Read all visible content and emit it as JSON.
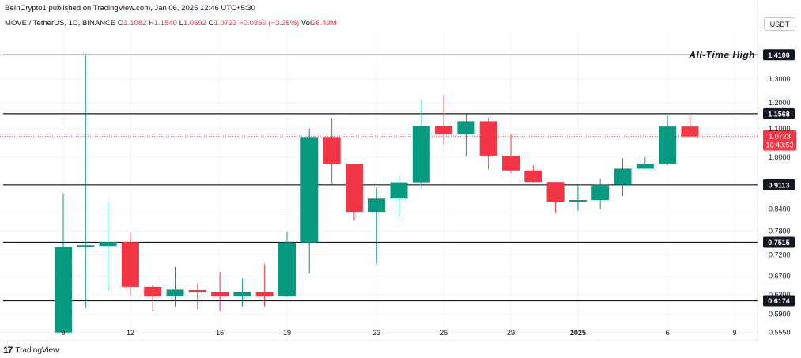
{
  "header": {
    "published": "BeInCrypto1 published on TradingView.com, Jan 06, 2025 12:46 UTC+5:30",
    "symbol": "MOVE / TetherUS, 1D, BINANCE",
    "o_label": "O",
    "o_value": "1.1082",
    "h_label": "H",
    "h_value": "1.1540",
    "l_label": "L",
    "l_value": "1.0692",
    "c_label": "C",
    "c_value": "1.0723",
    "change": "−0.0360 (−3.25%)",
    "vol_label": "Vol",
    "vol_value": "26.49M"
  },
  "currency": "USDT",
  "footer": {
    "brand": "TradingView",
    "logo": "17"
  },
  "colors": {
    "up": "#089981",
    "down": "#f23645",
    "level_line": "#131722",
    "grid": "#f0f3fa",
    "axis_text": "#131722"
  },
  "chart_data": {
    "type": "candlestick",
    "scale": "log",
    "ylim": [
      0.54,
      1.52
    ],
    "y_ticks": [
      "1.3000",
      "1.2000",
      "1.1000",
      "1.0000",
      "0.8400",
      "0.7800",
      "0.7200",
      "0.6700",
      "0.6300",
      "0.5900",
      "0.5550"
    ],
    "x_ticks": [
      {
        "day": 9,
        "label": "9"
      },
      {
        "day": 12,
        "label": "12"
      },
      {
        "day": 16,
        "label": "16"
      },
      {
        "day": 19,
        "label": "19"
      },
      {
        "day": 23,
        "label": "23"
      },
      {
        "day": 26,
        "label": "26"
      },
      {
        "day": 29,
        "label": "29"
      },
      {
        "day": 32,
        "label": "2025"
      },
      {
        "day": 36,
        "label": "6"
      },
      {
        "day": 39,
        "label": "9"
      }
    ],
    "candles": [
      {
        "day": 9,
        "o": 0.555,
        "h": 0.885,
        "l": 0.555,
        "c": 0.74
      },
      {
        "day": 10,
        "o": 0.741,
        "h": 1.41,
        "l": 0.602,
        "c": 0.744
      },
      {
        "day": 11,
        "o": 0.742,
        "h": 0.862,
        "l": 0.64,
        "c": 0.752
      },
      {
        "day": 12,
        "o": 0.752,
        "h": 0.775,
        "l": 0.628,
        "c": 0.647
      },
      {
        "day": 13,
        "o": 0.647,
        "h": 0.65,
        "l": 0.596,
        "c": 0.627
      },
      {
        "day": 14,
        "o": 0.627,
        "h": 0.692,
        "l": 0.605,
        "c": 0.641
      },
      {
        "day": 15,
        "o": 0.64,
        "h": 0.655,
        "l": 0.6,
        "c": 0.635
      },
      {
        "day": 16,
        "o": 0.636,
        "h": 0.68,
        "l": 0.596,
        "c": 0.627
      },
      {
        "day": 17,
        "o": 0.627,
        "h": 0.665,
        "l": 0.605,
        "c": 0.636
      },
      {
        "day": 18,
        "o": 0.636,
        "h": 0.698,
        "l": 0.605,
        "c": 0.627
      },
      {
        "day": 19,
        "o": 0.627,
        "h": 0.778,
        "l": 0.625,
        "c": 0.751
      },
      {
        "day": 20,
        "o": 0.751,
        "h": 1.1,
        "l": 0.677,
        "c": 1.07
      },
      {
        "day": 21,
        "o": 1.07,
        "h": 1.14,
        "l": 0.912,
        "c": 0.978
      },
      {
        "day": 22,
        "o": 0.978,
        "h": 0.978,
        "l": 0.808,
        "c": 0.832
      },
      {
        "day": 23,
        "o": 0.832,
        "h": 0.903,
        "l": 0.7,
        "c": 0.87
      },
      {
        "day": 24,
        "o": 0.87,
        "h": 0.937,
        "l": 0.82,
        "c": 0.919
      },
      {
        "day": 25,
        "o": 0.919,
        "h": 1.21,
        "l": 0.9,
        "c": 1.11
      },
      {
        "day": 26,
        "o": 1.11,
        "h": 1.232,
        "l": 1.042,
        "c": 1.08
      },
      {
        "day": 27,
        "o": 1.08,
        "h": 1.16,
        "l": 1.003,
        "c": 1.128
      },
      {
        "day": 28,
        "o": 1.128,
        "h": 1.14,
        "l": 0.96,
        "c": 1.005
      },
      {
        "day": 29,
        "o": 1.005,
        "h": 1.08,
        "l": 0.948,
        "c": 0.956
      },
      {
        "day": 30,
        "o": 0.956,
        "h": 0.973,
        "l": 0.918,
        "c": 0.92
      },
      {
        "day": 31,
        "o": 0.92,
        "h": 0.92,
        "l": 0.83,
        "c": 0.86
      },
      {
        "day": 32,
        "o": 0.86,
        "h": 0.91,
        "l": 0.835,
        "c": 0.866
      },
      {
        "day": 33,
        "o": 0.866,
        "h": 0.93,
        "l": 0.84,
        "c": 0.912
      },
      {
        "day": 34,
        "o": 0.912,
        "h": 0.995,
        "l": 0.878,
        "c": 0.962
      },
      {
        "day": 35,
        "o": 0.962,
        "h": 1.0,
        "l": 0.96,
        "c": 0.978
      },
      {
        "day": 36,
        "o": 0.978,
        "h": 1.15,
        "l": 0.973,
        "c": 1.108
      },
      {
        "day": 37,
        "o": 1.108,
        "h": 1.154,
        "l": 1.069,
        "c": 1.072
      }
    ],
    "levels": [
      {
        "value": 1.41,
        "label": "1.4100",
        "annotation": "All-Time High"
      },
      {
        "value": 1.1568,
        "label": "1.1568",
        "annotation": ""
      },
      {
        "value": 0.9113,
        "label": "0.9113",
        "annotation": ""
      },
      {
        "value": 0.7515,
        "label": "0.7515",
        "annotation": ""
      },
      {
        "value": 0.6174,
        "label": "0.6174",
        "annotation": ""
      }
    ],
    "last_price": {
      "value": 1.0723,
      "label": "1.0723",
      "countdown": "16:43:53"
    }
  }
}
